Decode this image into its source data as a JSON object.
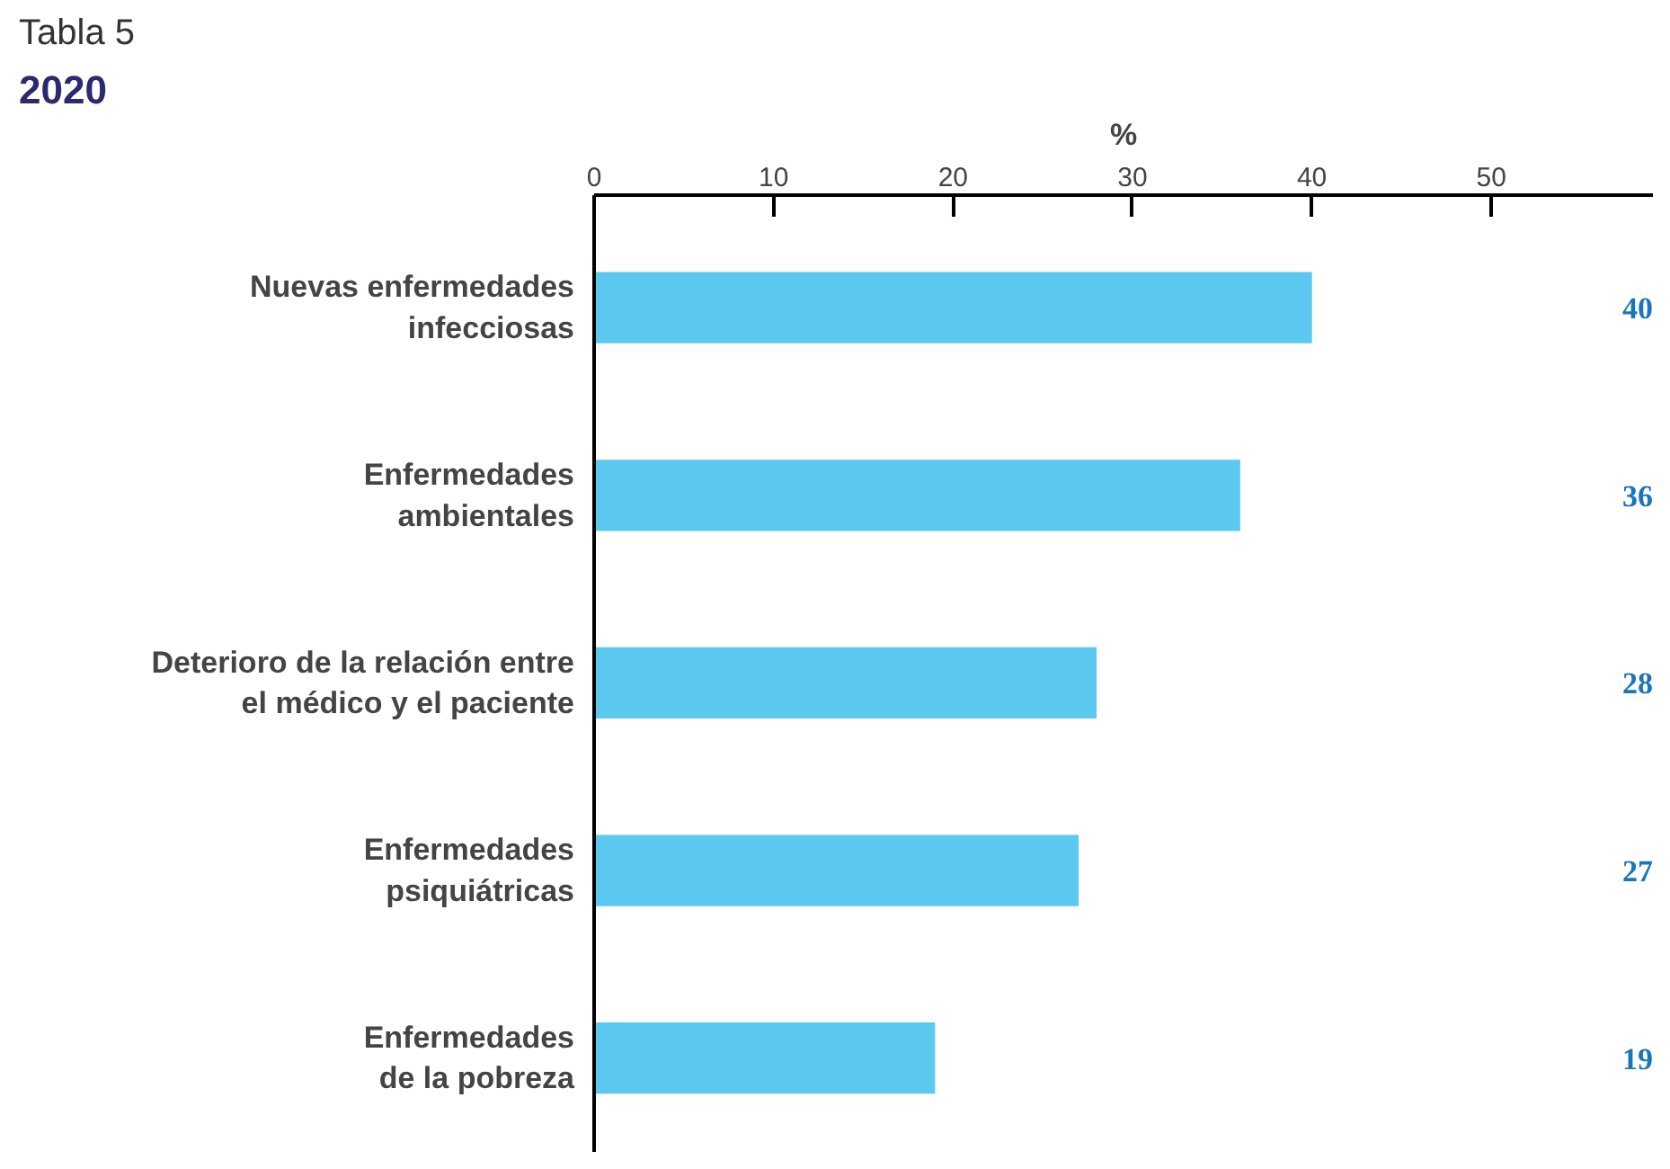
{
  "chart_data": {
    "type": "bar",
    "orientation": "horizontal",
    "title": "Tabla 5",
    "subtitle": "2020",
    "xlabel": "%",
    "categories": [
      "Nuevas enfermedades\ninfecciosas",
      "Enfermedades\nambientales",
      "Deterioro de la relación entre\nel médico y el paciente",
      "Enfermedades\npsiquiátricas",
      "Enfermedades\nde la pobreza"
    ],
    "values": [
      40,
      36,
      28,
      27,
      19
    ],
    "color": "#5bc8f0",
    "xlim": [
      0,
      59
    ],
    "xticks": [
      0,
      10,
      20,
      30,
      40,
      50
    ],
    "grid": false,
    "data_labels": true
  }
}
